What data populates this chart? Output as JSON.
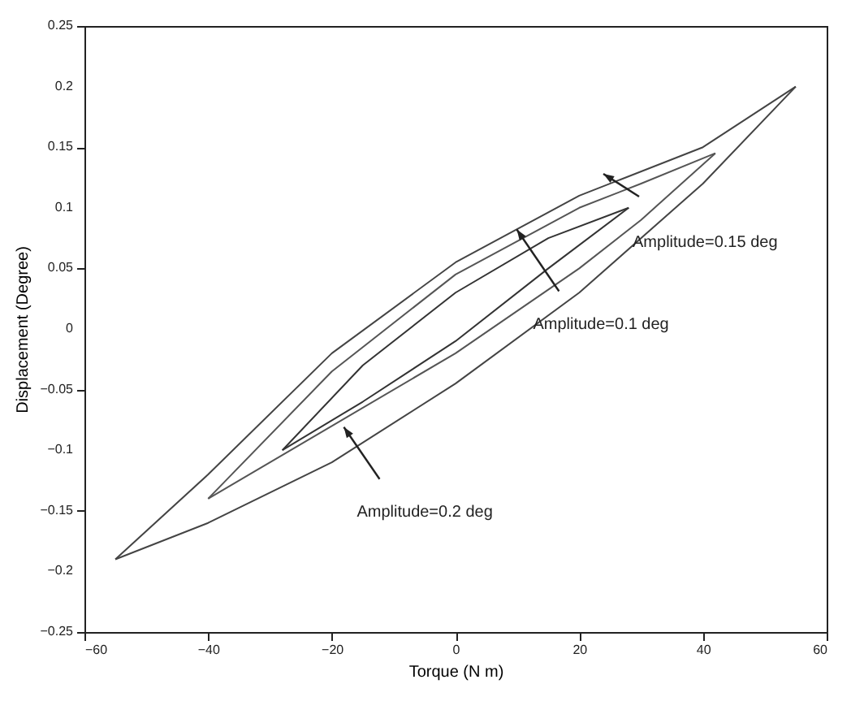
{
  "chart_data": {
    "type": "line",
    "xlabel": "Torque  (N m)",
    "ylabel": "Displacement  (Degree)",
    "xlim": [
      -60,
      60
    ],
    "xticks": [
      -60,
      -40,
      -20,
      0,
      20,
      40,
      60
    ],
    "ylim": [
      -0.25,
      0.25
    ],
    "yticks": [
      -0.25,
      -0.2,
      -0.15,
      -0.1,
      -0.05,
      0,
      0.05,
      0.1,
      0.15,
      0.2,
      0.25
    ],
    "grid": false,
    "legend": false,
    "marker": "none",
    "line_style": "solid",
    "series": [
      {
        "color": "#444444",
        "x": [
          -55,
          -40,
          -20,
          0,
          20,
          40,
          55
        ],
        "values": [
          -0.19,
          -0.12,
          -0.02,
          0.055,
          0.11,
          0.15,
          0.2
        ]
      },
      {
        "color": "#444444",
        "x": [
          -55,
          -40,
          -20,
          0,
          20,
          40,
          55
        ],
        "values": [
          -0.19,
          -0.16,
          -0.11,
          -0.045,
          0.03,
          0.12,
          0.2
        ]
      },
      {
        "color": "#555555",
        "x": [
          -40,
          -20,
          0,
          20,
          30,
          42
        ],
        "values": [
          -0.14,
          -0.035,
          0.045,
          0.1,
          0.12,
          0.145
        ]
      },
      {
        "color": "#555555",
        "x": [
          -40,
          -20,
          0,
          20,
          30,
          42
        ],
        "values": [
          -0.14,
          -0.08,
          -0.02,
          0.05,
          0.09,
          0.145
        ]
      },
      {
        "color": "#333333",
        "x": [
          -28,
          -15,
          0,
          15,
          28
        ],
        "values": [
          -0.1,
          -0.03,
          0.03,
          0.075,
          0.1
        ]
      },
      {
        "color": "#333333",
        "x": [
          -28,
          -15,
          0,
          15,
          28
        ],
        "values": [
          -0.1,
          -0.06,
          -0.01,
          0.05,
          0.1
        ]
      }
    ],
    "annotations": [
      {
        "text": "Amplitude=0.15 deg",
        "x": 26,
        "y": 0.112
      },
      "Amplitude=0.1 deg",
      "Amplitude=0.2 deg"
    ]
  }
}
